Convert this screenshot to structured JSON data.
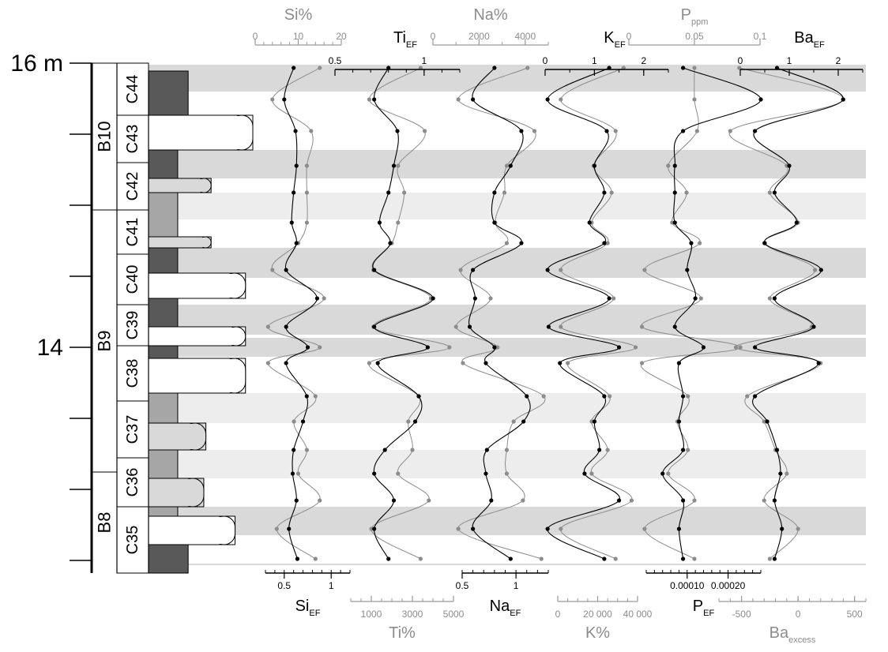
{
  "chart_data": {
    "type": "line",
    "orientation": "vertical-depth-profile",
    "colors": {
      "band_dark": "#d9d9d9",
      "band_light": "#ededed",
      "lith_dark": "#595959",
      "lith_mid": "#a6a6a6",
      "lith_light": "#d9d9d9",
      "lith_white": "#ffffff",
      "black_series": "#000000",
      "grey_series": "#8c8c8c"
    },
    "depth_axis": {
      "unit_label": "m",
      "range": [
        12.55,
        16.05
      ],
      "ticks": [
        12.7,
        13.15,
        13.6,
        14.05,
        14.5,
        14.95,
        15.4,
        15.85
      ],
      "labels": [
        {
          "depth": 15.85,
          "text": "16 m"
        },
        {
          "depth": 14.05,
          "text": "14"
        }
      ]
    },
    "beds": [
      {
        "name": "B10",
        "from": 14.92,
        "to": 15.85
      },
      {
        "name": "B9",
        "from": 13.26,
        "to": 14.92
      },
      {
        "name": "B8",
        "from": 12.58,
        "to": 13.26
      }
    ],
    "cycles": [
      {
        "name": "C44",
        "from": 15.52,
        "to": 15.85
      },
      {
        "name": "C43",
        "from": 15.22,
        "to": 15.52
      },
      {
        "name": "C42",
        "from": 14.92,
        "to": 15.22
      },
      {
        "name": "C41",
        "from": 14.64,
        "to": 14.92
      },
      {
        "name": "C40",
        "from": 14.32,
        "to": 14.64
      },
      {
        "name": "C39",
        "from": 14.06,
        "to": 14.32
      },
      {
        "name": "C38",
        "from": 13.71,
        "to": 14.06
      },
      {
        "name": "C37",
        "from": 13.35,
        "to": 13.71
      },
      {
        "name": "C36",
        "from": 13.04,
        "to": 13.35
      },
      {
        "name": "C35",
        "from": 12.58,
        "to": 13.04
      }
    ],
    "lithology": [
      {
        "top": 15.85,
        "bottom": 15.52,
        "width": 0.38,
        "shade": "lith_dark"
      },
      {
        "top": 15.52,
        "bottom": 15.3,
        "width": 1.0,
        "shade": "lith_white"
      },
      {
        "top": 15.3,
        "bottom": 15.12,
        "width": 0.28,
        "shade": "lith_dark"
      },
      {
        "top": 15.12,
        "bottom": 15.03,
        "width": 0.6,
        "shade": "lith_light"
      },
      {
        "top": 15.03,
        "bottom": 14.75,
        "width": 0.28,
        "shade": "lith_mid"
      },
      {
        "top": 14.75,
        "bottom": 14.68,
        "width": 0.6,
        "shade": "lith_light"
      },
      {
        "top": 14.68,
        "bottom": 14.52,
        "width": 0.28,
        "shade": "lith_dark"
      },
      {
        "top": 14.52,
        "bottom": 14.36,
        "width": 0.93,
        "shade": "lith_white"
      },
      {
        "top": 14.36,
        "bottom": 14.18,
        "width": 0.28,
        "shade": "lith_dark"
      },
      {
        "top": 14.18,
        "bottom": 14.06,
        "width": 0.93,
        "shade": "lith_white"
      },
      {
        "top": 14.06,
        "bottom": 13.98,
        "width": 0.28,
        "shade": "lith_dark"
      },
      {
        "top": 13.98,
        "bottom": 13.76,
        "width": 0.93,
        "shade": "lith_white"
      },
      {
        "top": 13.76,
        "bottom": 13.57,
        "width": 0.28,
        "shade": "lith_mid"
      },
      {
        "top": 13.57,
        "bottom": 13.4,
        "width": 0.55,
        "shade": "lith_light"
      },
      {
        "top": 13.4,
        "bottom": 13.22,
        "width": 0.28,
        "shade": "lith_mid"
      },
      {
        "top": 13.22,
        "bottom": 13.04,
        "width": 0.53,
        "shade": "lith_light"
      },
      {
        "top": 13.04,
        "bottom": 12.98,
        "width": 0.28,
        "shade": "lith_mid"
      },
      {
        "top": 12.98,
        "bottom": 12.8,
        "width": 0.83,
        "shade": "lith_white"
      },
      {
        "top": 12.8,
        "bottom": 12.58,
        "width": 0.38,
        "shade": "lith_dark"
      }
    ],
    "bands": [
      {
        "top": 15.85,
        "bottom": 15.67,
        "shade": "band_dark"
      },
      {
        "top": 15.3,
        "bottom": 15.12,
        "shade": "band_dark"
      },
      {
        "top": 15.03,
        "bottom": 14.86,
        "shade": "band_light"
      },
      {
        "top": 14.68,
        "bottom": 14.49,
        "shade": "band_dark"
      },
      {
        "top": 14.32,
        "bottom": 14.13,
        "shade": "band_dark"
      },
      {
        "top": 14.11,
        "bottom": 13.99,
        "shade": "band_dark"
      },
      {
        "top": 13.76,
        "bottom": 13.57,
        "shade": "band_light"
      },
      {
        "top": 13.4,
        "bottom": 13.22,
        "shade": "band_light"
      },
      {
        "top": 13.04,
        "bottom": 12.86,
        "shade": "band_dark"
      },
      {
        "top": 12.68,
        "bottom": 12.55,
        "shade": "band_dark"
      }
    ],
    "depths": [
      15.82,
      15.62,
      15.42,
      15.2,
      15.03,
      14.84,
      14.71,
      14.54,
      14.36,
      14.18,
      14.05,
      13.95,
      13.74,
      13.58,
      13.4,
      13.25,
      13.08,
      12.9,
      12.71
    ],
    "series": [
      {
        "name": "Si%",
        "color": "grey_series",
        "axis": {
          "position": "top",
          "x_min": 0,
          "x_max": 20,
          "ticks": [
            0,
            10,
            20
          ],
          "minor_step": 2
        },
        "values": [
          15,
          4,
          13,
          12,
          12,
          12,
          10,
          4,
          16,
          3,
          15,
          3,
          14,
          9,
          12,
          10,
          15,
          5,
          14
        ]
      },
      {
        "name": "Si",
        "sub": "EF",
        "color": "black_series",
        "axis": {
          "position": "bottom",
          "x_min": 0.3,
          "x_max": 1.2,
          "ticks": [
            0.5,
            1
          ],
          "minor_step": 0.1,
          "tick_labels": [
            "0.5",
            "1"
          ],
          "extra_tick_labels": [
            {
              "value": 0.5,
              "text": "0.5"
            }
          ]
        },
        "values": [
          0.6,
          0.5,
          0.62,
          0.63,
          0.6,
          0.58,
          0.63,
          0.52,
          0.85,
          0.52,
          0.75,
          0.52,
          0.74,
          0.7,
          0.6,
          0.59,
          0.63,
          0.55,
          0.64
        ]
      },
      {
        "name": "Ti",
        "sub": "EF",
        "color": "black_series",
        "axis": {
          "position": "top",
          "x_min": 0.5,
          "x_max": 1.2,
          "ticks": [
            0.5,
            1
          ],
          "minor_step": 0.1
        },
        "values": [
          0.8,
          0.72,
          0.85,
          0.83,
          0.8,
          0.75,
          0.81,
          0.72,
          1.05,
          0.72,
          1.02,
          0.74,
          0.97,
          0.95,
          0.78,
          0.72,
          0.83,
          0.72,
          0.8
        ]
      },
      {
        "name": "Ti%",
        "color": "grey_series",
        "axis": {
          "position": "bottom",
          "x_min": 0,
          "x_max": 5000,
          "ticks": [
            1000,
            3000,
            5000
          ],
          "minor_step": 500
        },
        "values": [
          3400,
          900,
          3600,
          2300,
          2600,
          2300,
          2000,
          1100,
          3900,
          1100,
          4800,
          900,
          3300,
          2800,
          3000,
          2300,
          3800,
          1000,
          3400
        ]
      },
      {
        "name": "Na%",
        "color": "grey_series",
        "axis": {
          "position": "top",
          "x_min": 0,
          "x_max": 5000,
          "ticks": [
            0,
            2000,
            4000
          ],
          "minor_step": 1000
        },
        "values": [
          4100,
          1100,
          4400,
          3200,
          3100,
          2700,
          3200,
          1200,
          2500,
          1000,
          2800,
          1300,
          4800,
          3500,
          3200,
          3200,
          3900,
          1100,
          4700
        ]
      },
      {
        "name": "Na",
        "sub": "EF",
        "color": "black_series",
        "axis": {
          "position": "bottom",
          "x_min": 0.5,
          "x_max": 1.3,
          "ticks": [
            0.5,
            1
          ],
          "minor_step": 0.1,
          "tick_labels": [
            "0.5",
            "1"
          ]
        },
        "values": [
          0.8,
          0.6,
          1.05,
          0.95,
          0.8,
          0.8,
          1.05,
          0.6,
          0.62,
          0.57,
          0.8,
          0.72,
          1.1,
          1.07,
          0.73,
          0.72,
          0.77,
          0.6,
          0.95
        ]
      },
      {
        "name": "K",
        "sub": "EF",
        "color": "black_series",
        "axis": {
          "position": "top",
          "x_min": 0,
          "x_max": 2.5,
          "ticks": [
            0,
            1,
            2
          ],
          "minor_step": 0.5
        },
        "values": [
          1.3,
          0.05,
          1.25,
          1.0,
          1.2,
          0.9,
          1.2,
          0.05,
          1.3,
          0.07,
          1.5,
          0.3,
          1.2,
          1.0,
          1.1,
          0.8,
          1.5,
          0.05,
          1.2
        ]
      },
      {
        "name": "K%",
        "color": "grey_series",
        "axis": {
          "position": "bottom",
          "x_min": 0,
          "x_max": 40000,
          "ticks": [
            0,
            20000,
            40000
          ],
          "tick_labels": [
            "0",
            "20 000",
            "40 000"
          ],
          "minor_step": 5000
        },
        "values": [
          33000,
          1500,
          29000,
          18000,
          27000,
          17000,
          25000,
          1500,
          28000,
          1500,
          39000,
          5000,
          26000,
          17000,
          25000,
          17000,
          37000,
          1500,
          29000
        ]
      },
      {
        "name": "P",
        "sub": "ppm",
        "color": "grey_series",
        "axis": {
          "position": "top",
          "x_min": 0,
          "x_max": 0.1,
          "ticks": [
            0,
            0.05,
            0.1
          ],
          "tick_labels": [
            "0",
            "0.05",
            "0.1"
          ]
        },
        "values": [
          0.05,
          0.05,
          0.052,
          0.03,
          0.044,
          0.033,
          0.054,
          0.012,
          0.055,
          0.01,
          0.085,
          0.01,
          0.045,
          0.037,
          0.045,
          0.03,
          0.05,
          0.012,
          0.05
        ]
      },
      {
        "name": "P",
        "sub": "EF",
        "color": "black_series",
        "axis": {
          "position": "bottom",
          "x_min": 0,
          "x_max": 0.00028,
          "ticks": [
            0.0001,
            0.0002
          ],
          "tick_labels": [
            "0.00010",
            "0.00020"
          ],
          "minor_step": 2e-05
        },
        "values": [
          9e-05,
          0.00028,
          9e-05,
          7e-05,
          7e-05,
          7e-05,
          0.00011,
          0.0001,
          0.00012,
          7e-05,
          0.00014,
          8e-05,
          9e-05,
          8e-05,
          9e-05,
          4e-05,
          9e-05,
          8e-05,
          9e-05
        ]
      },
      {
        "name": "Ba",
        "sub": "EF",
        "color": "black_series",
        "axis": {
          "position": "top",
          "x_min": 0,
          "x_max": 2.5,
          "ticks": [
            0,
            1,
            2
          ],
          "minor_step": 0.5
        },
        "values": [
          0.75,
          2.1,
          0.3,
          1.0,
          0.7,
          1.15,
          0.5,
          1.65,
          0.7,
          1.5,
          0.3,
          1.6,
          0.3,
          0.55,
          0.75,
          0.82,
          0.7,
          0.85,
          0.7
        ]
      },
      {
        "name": "Ba",
        "sub": "excess",
        "color": "grey_series",
        "axis": {
          "position": "bottom",
          "x_min": -700,
          "x_max": 600,
          "ticks": [
            -500,
            0,
            500
          ],
          "minor_step": 100
        },
        "values": [
          -520,
          400,
          -600,
          -100,
          -250,
          0,
          -300,
          150,
          -250,
          120,
          -550,
          200,
          -450,
          -300,
          -200,
          -100,
          -300,
          0,
          -250
        ]
      }
    ],
    "top_axis_labels": [
      {
        "text": "Si%",
        "sub": "",
        "color": "grey_series"
      },
      {
        "text": "Ti",
        "sub": "EF",
        "color": "black_series"
      },
      {
        "text": "Na%",
        "sub": "",
        "color": "grey_series"
      },
      {
        "text": "K",
        "sub": "EF",
        "color": "black_series"
      },
      {
        "text": "P",
        "sub": "ppm",
        "color": "grey_series"
      },
      {
        "text": "Ba",
        "sub": "EF",
        "color": "black_series"
      }
    ],
    "bottom_axis_labels": [
      {
        "text": "Si",
        "sub": "EF",
        "color": "black_series"
      },
      {
        "text": "Ti%",
        "sub": "",
        "color": "grey_series"
      },
      {
        "text": "Na",
        "sub": "EF",
        "color": "black_series"
      },
      {
        "text": "K%",
        "sub": "",
        "color": "grey_series"
      },
      {
        "text": "P",
        "sub": "EF",
        "color": "black_series"
      },
      {
        "text": "Ba",
        "sub": "excess",
        "color": "grey_series"
      }
    ]
  }
}
